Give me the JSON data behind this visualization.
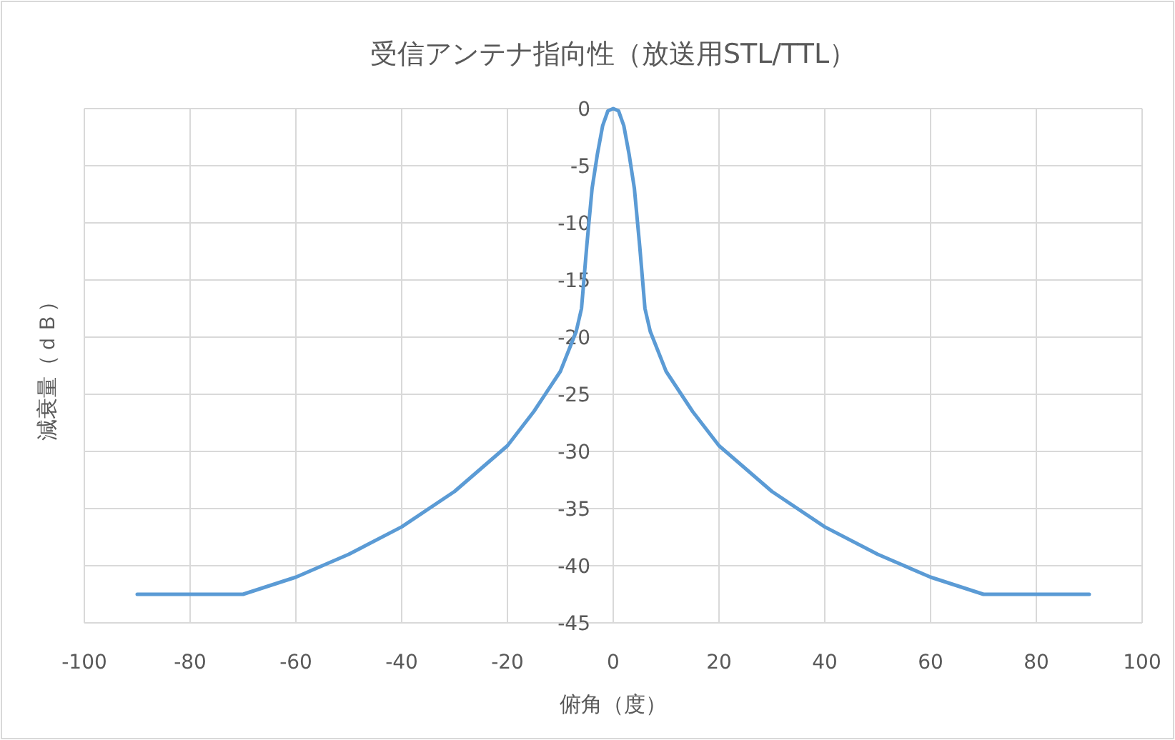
{
  "chart_data": {
    "type": "line",
    "title": "受信アンテナ指向性（放送用STL/TTL）",
    "xlabel": "俯角（度）",
    "ylabel": "減衰量（ｄＢ）",
    "x": [
      -90,
      -70,
      -60,
      -50,
      -40,
      -30,
      -20,
      -15,
      -10,
      -7,
      -6,
      -5,
      -4,
      -3,
      -2,
      -1,
      0,
      1,
      2,
      3,
      4,
      5,
      6,
      7,
      10,
      15,
      20,
      30,
      40,
      50,
      60,
      70,
      90
    ],
    "series": [
      {
        "color": "#5b9bd5",
        "values": [
          -42.5,
          -42.5,
          -41,
          -39,
          -36.6,
          -33.5,
          -29.5,
          -26.5,
          -23,
          -19.5,
          -17.5,
          -12,
          -7,
          -4,
          -1.5,
          -0.2,
          0,
          -0.2,
          -1.5,
          -4,
          -7,
          -12,
          -17.5,
          -19.5,
          -23,
          -26.5,
          -29.5,
          -33.5,
          -36.6,
          -39,
          -41,
          -42.5,
          -42.5
        ]
      }
    ],
    "xlim": [
      -100,
      100
    ],
    "xticks": [
      -100,
      -80,
      -60,
      -40,
      -20,
      0,
      20,
      40,
      60,
      80,
      100
    ],
    "ylim": [
      -45,
      0
    ],
    "yticks": [
      0,
      -5,
      -10,
      -15,
      -20,
      -25,
      -30,
      -35,
      -40,
      -45
    ],
    "grid": true,
    "line_style": "solid",
    "marker": "none"
  }
}
